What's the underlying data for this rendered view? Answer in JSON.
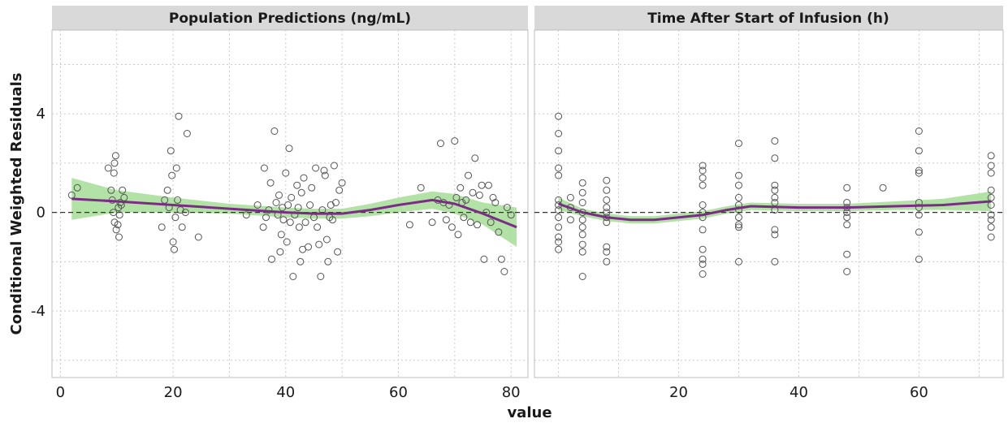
{
  "chart_data": {
    "type": "scatter",
    "xlabel": "value",
    "ylabel": "Conditional Weighted Residuals",
    "ylim": [
      -6.7,
      7.4
    ],
    "y_ticks": [
      4,
      0,
      -4
    ],
    "y_tick_labels": [
      "4",
      "0",
      "-4"
    ],
    "reference_line": {
      "y": 0,
      "style": "dashed"
    },
    "grid": true,
    "colors": {
      "points": "#555555",
      "smooth_line": "#7b2d86",
      "smooth_band": "#a5dd95",
      "strip": "#d9d9d9",
      "panel_border": "#bdbdbd",
      "grid": "#cccccc"
    },
    "panels": [
      {
        "title": "Population Predictions (ng/mL)",
        "xlim": [
          -1.5,
          83
        ],
        "x_ticks": [
          0,
          20,
          40,
          60,
          80
        ],
        "x_tick_labels": [
          "0",
          "20",
          "40",
          "60",
          "80"
        ],
        "points": [
          [
            2,
            0.7
          ],
          [
            3,
            1.0
          ],
          [
            8.5,
            1.8
          ],
          [
            9,
            0.9
          ],
          [
            9.2,
            0.5
          ],
          [
            9.5,
            1.6
          ],
          [
            9.6,
            2.0
          ],
          [
            9.8,
            2.3
          ],
          [
            9.4,
            0
          ],
          [
            9.6,
            -0.4
          ],
          [
            9.9,
            -0.7
          ],
          [
            10.2,
            -0.5
          ],
          [
            10.3,
            0.2
          ],
          [
            10.5,
            -0.1
          ],
          [
            10.6,
            0.4
          ],
          [
            10.4,
            -1.0
          ],
          [
            10.8,
            0.3
          ],
          [
            11,
            0.9
          ],
          [
            11.3,
            0.6
          ],
          [
            18,
            -0.6
          ],
          [
            18.5,
            0.5
          ],
          [
            19,
            0.9
          ],
          [
            19.3,
            0.2
          ],
          [
            19.6,
            2.5
          ],
          [
            19.8,
            1.5
          ],
          [
            20,
            -1.2
          ],
          [
            20.2,
            -1.5
          ],
          [
            20.4,
            -0.2
          ],
          [
            20.6,
            1.8
          ],
          [
            20.8,
            0.5
          ],
          [
            21,
            3.9
          ],
          [
            21.3,
            0.1
          ],
          [
            21.6,
            -0.6
          ],
          [
            22.2,
            0
          ],
          [
            22.5,
            3.2
          ],
          [
            24.5,
            -1.0
          ],
          [
            33,
            -0.1
          ],
          [
            35,
            0.3
          ],
          [
            36,
            -0.6
          ],
          [
            36.2,
            1.8
          ],
          [
            36.5,
            -0.2
          ],
          [
            37,
            0.1
          ],
          [
            37.3,
            1.2
          ],
          [
            37.5,
            -1.9
          ],
          [
            38,
            3.3
          ],
          [
            38.3,
            0.4
          ],
          [
            38.6,
            -0.1
          ],
          [
            38.8,
            0.7
          ],
          [
            39,
            -1.6
          ],
          [
            39.2,
            -0.9
          ],
          [
            39.4,
            0.2
          ],
          [
            39.6,
            -0.3
          ],
          [
            40,
            1.6
          ],
          [
            40.2,
            -1.2
          ],
          [
            40.4,
            0.3
          ],
          [
            40.6,
            2.6
          ],
          [
            40.8,
            -0.4
          ],
          [
            41,
            0.6
          ],
          [
            41.3,
            -2.6
          ],
          [
            41.6,
            -0.1
          ],
          [
            42,
            1.1
          ],
          [
            42.2,
            0.2
          ],
          [
            42.4,
            -0.6
          ],
          [
            42.6,
            -2.0
          ],
          [
            42.8,
            0.8
          ],
          [
            43,
            -1.5
          ],
          [
            43.2,
            1.4
          ],
          [
            43.5,
            -0.4
          ],
          [
            44,
            -1.4
          ],
          [
            44.3,
            0.3
          ],
          [
            44.6,
            1.0
          ],
          [
            45,
            -0.2
          ],
          [
            45.3,
            1.8
          ],
          [
            45.6,
            -0.6
          ],
          [
            45.9,
            -1.3
          ],
          [
            46.2,
            -2.6
          ],
          [
            46.5,
            0.1
          ],
          [
            46.8,
            1.7
          ],
          [
            47,
            1.5
          ],
          [
            47.3,
            -1.1
          ],
          [
            47.5,
            -2.0
          ],
          [
            47.8,
            -0.2
          ],
          [
            48,
            0.3
          ],
          [
            48.3,
            -0.3
          ],
          [
            48.6,
            1.9
          ],
          [
            48.9,
            0.4
          ],
          [
            49.2,
            -1.6
          ],
          [
            49.5,
            0.9
          ],
          [
            50,
            1.2
          ],
          [
            62,
            -0.5
          ],
          [
            64,
            1.0
          ],
          [
            66,
            -0.4
          ],
          [
            67,
            0.5
          ],
          [
            67.5,
            2.8
          ],
          [
            68,
            0.4
          ],
          [
            68.5,
            -0.3
          ],
          [
            69,
            0.3
          ],
          [
            69.5,
            -0.6
          ],
          [
            70,
            2.9
          ],
          [
            70.3,
            0.6
          ],
          [
            70.6,
            -0.9
          ],
          [
            71,
            1.0
          ],
          [
            71.3,
            0.4
          ],
          [
            71.6,
            -0.2
          ],
          [
            72,
            0.5
          ],
          [
            72.4,
            1.5
          ],
          [
            72.8,
            -0.4
          ],
          [
            73.2,
            0.8
          ],
          [
            73.6,
            2.2
          ],
          [
            74,
            -0.5
          ],
          [
            74.4,
            0.7
          ],
          [
            74.8,
            1.1
          ],
          [
            75.2,
            -1.9
          ],
          [
            75.6,
            0
          ],
          [
            76,
            1.1
          ],
          [
            76.4,
            -0.4
          ],
          [
            76.8,
            0.6
          ],
          [
            77.2,
            0.4
          ],
          [
            77.8,
            -0.8
          ],
          [
            78.3,
            -1.9
          ],
          [
            78.8,
            -2.4
          ],
          [
            79.3,
            0.2
          ],
          [
            80,
            -0.1
          ]
        ],
        "smooth_x": [
          2,
          10,
          20,
          30,
          40,
          45,
          50,
          55,
          60,
          66,
          70,
          75,
          81
        ],
        "smooth_y": [
          0.55,
          0.45,
          0.3,
          0.15,
          0,
          -0.05,
          -0.05,
          0.1,
          0.3,
          0.5,
          0.35,
          -0.05,
          -0.6
        ],
        "band_upper": [
          1.4,
          0.9,
          0.6,
          0.35,
          0.2,
          0.15,
          0.15,
          0.35,
          0.6,
          0.85,
          0.75,
          0.4,
          0.2
        ],
        "band_lower": [
          -0.3,
          0,
          0.0,
          -0.05,
          -0.2,
          -0.25,
          -0.25,
          -0.15,
          0.0,
          0.15,
          -0.05,
          -0.5,
          -1.4
        ]
      },
      {
        "title": "Time After Start of Infusion (h)",
        "xlim": [
          -4,
          74
        ],
        "x_ticks": [
          20,
          40,
          60
        ],
        "x_tick_labels": [
          "20",
          "40",
          "60"
        ],
        "points": [
          [
            0,
            3.9
          ],
          [
            0,
            3.2
          ],
          [
            0,
            2.5
          ],
          [
            0,
            1.8
          ],
          [
            0,
            1.5
          ],
          [
            0,
            0.5
          ],
          [
            0,
            0.3
          ],
          [
            0,
            0.1
          ],
          [
            0,
            -0.2
          ],
          [
            0,
            -0.6
          ],
          [
            0,
            -1.2
          ],
          [
            0,
            -1.5
          ],
          [
            0,
            -1.0
          ],
          [
            2,
            0.6
          ],
          [
            2,
            0.2
          ],
          [
            2,
            -0.3
          ],
          [
            4,
            1.2
          ],
          [
            4,
            0.8
          ],
          [
            4,
            0.4
          ],
          [
            4,
            0
          ],
          [
            4,
            -0.3
          ],
          [
            4,
            -0.6
          ],
          [
            4,
            -0.9
          ],
          [
            4,
            -1.3
          ],
          [
            4,
            -1.6
          ],
          [
            4,
            -2.6
          ],
          [
            8,
            1.3
          ],
          [
            8,
            0.9
          ],
          [
            8,
            0.5
          ],
          [
            8,
            0.2
          ],
          [
            8,
            0
          ],
          [
            8,
            -0.2
          ],
          [
            8,
            -0.4
          ],
          [
            8,
            -1.4
          ],
          [
            8,
            -1.6
          ],
          [
            8,
            -2.0
          ],
          [
            24,
            1.9
          ],
          [
            24,
            1.7
          ],
          [
            24,
            1.4
          ],
          [
            24,
            1.1
          ],
          [
            24,
            0.3
          ],
          [
            24,
            0
          ],
          [
            24,
            -0.2
          ],
          [
            24,
            -0.7
          ],
          [
            24,
            -1.5
          ],
          [
            24,
            -1.9
          ],
          [
            24,
            -2.1
          ],
          [
            24,
            -2.5
          ],
          [
            30,
            2.8
          ],
          [
            30,
            1.5
          ],
          [
            30,
            1.1
          ],
          [
            30,
            0.6
          ],
          [
            30,
            0.3
          ],
          [
            30,
            0.1
          ],
          [
            30,
            -0.2
          ],
          [
            30,
            -0.5
          ],
          [
            30,
            -0.6
          ],
          [
            30,
            -2.0
          ],
          [
            36,
            2.9
          ],
          [
            36,
            2.2
          ],
          [
            36,
            1.1
          ],
          [
            36,
            0.9
          ],
          [
            36,
            0.6
          ],
          [
            36,
            0.4
          ],
          [
            36,
            0.1
          ],
          [
            36,
            -0.7
          ],
          [
            36,
            -0.9
          ],
          [
            36,
            -2.0
          ],
          [
            48,
            1.0
          ],
          [
            48,
            0.4
          ],
          [
            48,
            0.2
          ],
          [
            48,
            0
          ],
          [
            48,
            -0.2
          ],
          [
            48,
            -0.5
          ],
          [
            48,
            -1.7
          ],
          [
            48,
            -2.4
          ],
          [
            54,
            1.0
          ],
          [
            60,
            3.3
          ],
          [
            60,
            2.5
          ],
          [
            60,
            1.7
          ],
          [
            60,
            1.6
          ],
          [
            60,
            0.4
          ],
          [
            60,
            0.2
          ],
          [
            60,
            -0.1
          ],
          [
            60,
            -0.8
          ],
          [
            60,
            -1.9
          ],
          [
            72,
            2.3
          ],
          [
            72,
            1.9
          ],
          [
            72,
            1.6
          ],
          [
            72,
            0.9
          ],
          [
            72,
            0.6
          ],
          [
            72,
            0.3
          ],
          [
            72,
            -0.1
          ],
          [
            72,
            -0.3
          ],
          [
            72,
            -0.6
          ],
          [
            72,
            -1.0
          ]
        ],
        "smooth_x": [
          0,
          4,
          8,
          12,
          16,
          20,
          24,
          28,
          32,
          40,
          48,
          56,
          64,
          72
        ],
        "smooth_y": [
          0.35,
          0,
          -0.2,
          -0.3,
          -0.3,
          -0.2,
          -0.1,
          0.1,
          0.25,
          0.2,
          0.2,
          0.25,
          0.3,
          0.45
        ],
        "band_upper": [
          0.6,
          0.15,
          -0.05,
          -0.15,
          -0.15,
          -0.05,
          0.05,
          0.25,
          0.4,
          0.35,
          0.35,
          0.45,
          0.55,
          0.85
        ],
        "band_lower": [
          0.1,
          -0.15,
          -0.35,
          -0.45,
          -0.45,
          -0.35,
          -0.25,
          -0.05,
          0.1,
          0.05,
          0.05,
          0.1,
          0.1,
          0.05
        ]
      }
    ]
  }
}
